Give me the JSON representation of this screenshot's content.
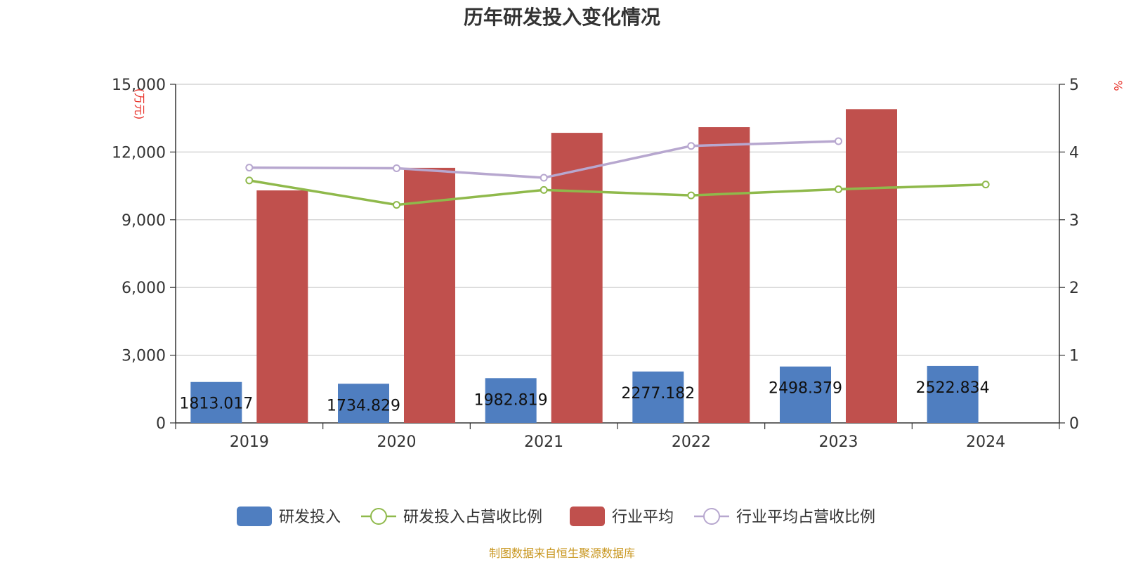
{
  "chart_data": {
    "type": "bar",
    "title": "历年研发投入变化情况",
    "categories": [
      "2019",
      "2020",
      "2021",
      "2022",
      "2023",
      "2024"
    ],
    "y_left": {
      "unit": "万元",
      "ylim": [
        0,
        15000
      ],
      "ticks": [
        0,
        3000,
        6000,
        9000,
        12000,
        15000
      ],
      "tick_labels": [
        "0",
        "3,000",
        "6,000",
        "9,000",
        "12,000",
        "15,000"
      ]
    },
    "y_right": {
      "unit": "%",
      "ylim": [
        0,
        5
      ],
      "ticks": [
        0,
        1,
        2,
        3,
        4,
        5
      ],
      "tick_labels": [
        "0",
        "1",
        "2",
        "3",
        "4",
        "5"
      ]
    },
    "grid": true,
    "legend_position": "bottom",
    "series": [
      {
        "name": "研发投入",
        "kind": "bar",
        "axis": "left",
        "color": "#4f7ec0",
        "values": [
          1813.017,
          1734.829,
          1982.819,
          2277.182,
          2498.379,
          2522.834
        ],
        "labels": [
          "1813.017",
          "1734.829",
          "1982.819",
          "2277.182",
          "2498.379",
          "2522.834"
        ]
      },
      {
        "name": "研发投入占营收比例",
        "kind": "line",
        "axis": "right",
        "color": "#8fb94b",
        "values": [
          3.58,
          3.22,
          3.44,
          3.36,
          3.45,
          3.52
        ]
      },
      {
        "name": "行业平均",
        "kind": "bar",
        "axis": "left",
        "color": "#c0504d",
        "values": [
          10300,
          11300,
          12850,
          13100,
          13900,
          null
        ]
      },
      {
        "name": "行业平均占营收比例",
        "kind": "line",
        "axis": "right",
        "color": "#b7a7cf",
        "values": [
          3.77,
          3.76,
          3.62,
          4.09,
          4.16,
          null
        ]
      }
    ]
  },
  "source_note": "制图数据来自恒生聚源数据库"
}
